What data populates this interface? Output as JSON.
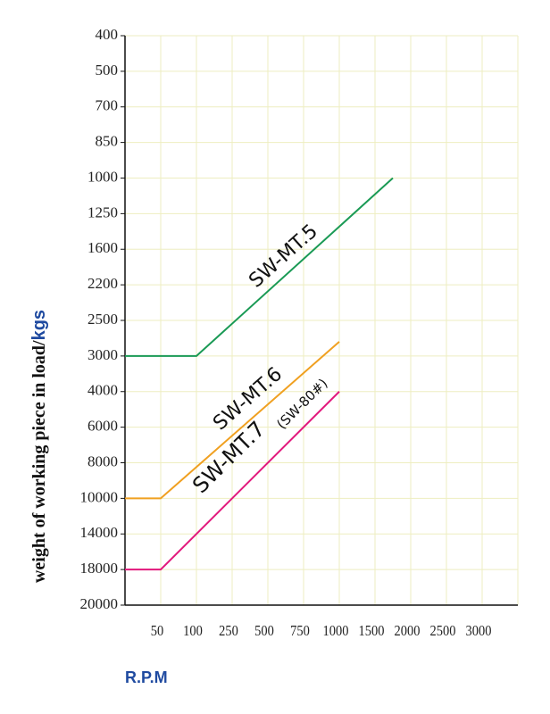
{
  "chart_data": {
    "type": "line",
    "x_label": "R.P.M",
    "y_label": "weight of working piece in load/",
    "y_label_unit": "kgs",
    "annotations": [
      "(SW-80#)"
    ],
    "xlim": [
      0,
      3500
    ],
    "xticks": [
      50,
      100,
      250,
      500,
      750,
      1000,
      1500,
      2000,
      2500,
      3000
    ],
    "ylim": [
      400,
      20000
    ],
    "yticks": [
      400,
      500,
      700,
      850,
      1000,
      1250,
      1600,
      2200,
      2500,
      3000,
      4000,
      6000,
      8000,
      10000,
      14000,
      18000,
      20000
    ],
    "grid": true,
    "series": [
      {
        "name": "SW-MT.5",
        "color": "#1a9a55",
        "x": [
          0,
          100,
          1750
        ],
        "values": [
          3000,
          3000,
          1000
        ]
      },
      {
        "name": "SW-MT.6",
        "color": "#f0a020",
        "x": [
          0,
          50,
          1000
        ],
        "values": [
          10000,
          10000,
          2800
        ]
      },
      {
        "name": "SW-MT.7",
        "color": "#e2187c",
        "x": [
          0,
          50,
          1000
        ],
        "values": [
          18000,
          18000,
          4000
        ]
      }
    ]
  }
}
